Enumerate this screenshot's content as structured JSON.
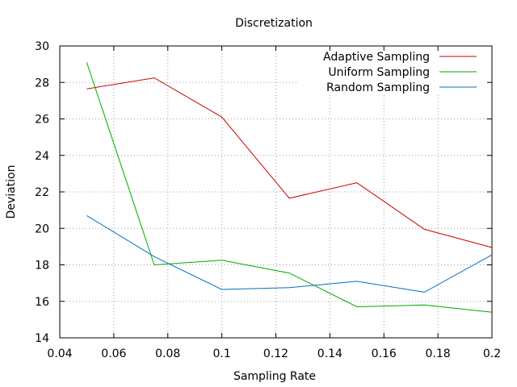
{
  "chart_data": {
    "type": "line",
    "title": "Discretization",
    "xlabel": "Sampling Rate",
    "ylabel": "Deviation",
    "xlim": [
      0.04,
      0.2
    ],
    "ylim": [
      14,
      30
    ],
    "x_ticks": [
      "0.04",
      "0.06",
      "0.08",
      "0.1",
      "0.12",
      "0.14",
      "0.16",
      "0.18",
      "0.2"
    ],
    "y_ticks": [
      "14",
      "16",
      "18",
      "20",
      "22",
      "24",
      "26",
      "28",
      "30"
    ],
    "grid": true,
    "legend_position": "top-right",
    "x": [
      0.05,
      0.075,
      0.1,
      0.125,
      0.15,
      0.175,
      0.2
    ],
    "series": [
      {
        "name": "Adaptive Sampling",
        "color": "#cc0000",
        "values": [
          27.65,
          28.25,
          26.1,
          21.65,
          22.5,
          19.95,
          18.95
        ]
      },
      {
        "name": "Uniform Sampling",
        "color": "#00aa00",
        "values": [
          29.1,
          18.0,
          18.25,
          17.55,
          15.7,
          15.8,
          15.4
        ]
      },
      {
        "name": "Random Sampling",
        "color": "#0070c0",
        "values": [
          20.7,
          18.45,
          16.65,
          16.75,
          17.1,
          16.5,
          18.55
        ]
      }
    ]
  }
}
